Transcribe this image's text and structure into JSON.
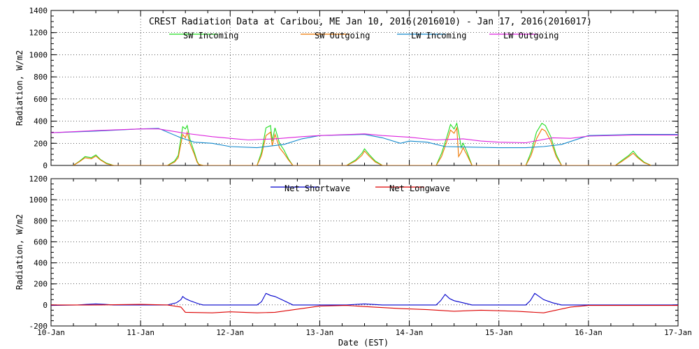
{
  "chart_data": [
    {
      "type": "line",
      "title": "CREST Radiation Data at Caribou, ME   Jan 10, 2016(2016010) - Jan 17, 2016(2016017)",
      "xlabel": "",
      "ylabel": "Radiation, W/m2",
      "xlim": [
        "10-Jan",
        "17-Jan"
      ],
      "ylim": [
        0,
        1400
      ],
      "yticks": [
        0,
        200,
        400,
        600,
        800,
        1000,
        1200,
        1400
      ],
      "grid": true,
      "legend_position": "top",
      "colors": {
        "sw_in": "#22dd22",
        "sw_out": "#ee7700",
        "lw_in": "#1188cc",
        "lw_out": "#dd22dd"
      },
      "series": [
        {
          "name": "SW Incoming",
          "color": "#22dd22",
          "x": [
            0.25,
            0.32,
            0.38,
            0.45,
            0.5,
            0.55,
            0.58,
            0.62,
            0.7,
            1.3,
            1.38,
            1.42,
            1.47,
            1.5,
            1.52,
            1.55,
            1.6,
            1.63,
            1.65,
            1.7,
            2.3,
            2.35,
            2.4,
            2.45,
            2.47,
            2.5,
            2.53,
            2.55,
            2.6,
            2.65,
            2.7,
            3.3,
            3.4,
            3.47,
            3.5,
            3.55,
            3.62,
            3.7,
            4.3,
            4.36,
            4.42,
            4.46,
            4.5,
            4.53,
            4.55,
            4.58,
            4.6,
            4.64,
            4.7,
            5.3,
            5.36,
            5.42,
            5.48,
            5.52,
            5.58,
            5.64,
            5.7,
            6.3,
            6.38,
            6.45,
            6.5,
            6.55,
            6.62,
            6.7
          ],
          "y": [
            0,
            40,
            80,
            70,
            95,
            55,
            40,
            20,
            0,
            0,
            40,
            90,
            350,
            330,
            360,
            240,
            120,
            40,
            10,
            0,
            0,
            120,
            340,
            360,
            220,
            340,
            260,
            200,
            140,
            60,
            0,
            0,
            50,
            110,
            150,
            100,
            40,
            0,
            0,
            110,
            260,
            370,
            330,
            380,
            300,
            160,
            200,
            130,
            0,
            0,
            120,
            300,
            380,
            360,
            260,
            100,
            0,
            0,
            50,
            90,
            130,
            80,
            30,
            0
          ]
        },
        {
          "name": "SW Outgoing",
          "color": "#ee7700",
          "x": [
            0.25,
            0.32,
            0.38,
            0.45,
            0.5,
            0.55,
            0.58,
            0.62,
            0.7,
            1.3,
            1.38,
            1.42,
            1.47,
            1.5,
            1.52,
            1.55,
            1.6,
            1.63,
            1.65,
            1.7,
            2.3,
            2.35,
            2.4,
            2.45,
            2.47,
            2.5,
            2.53,
            2.55,
            2.6,
            2.65,
            2.7,
            3.3,
            3.4,
            3.47,
            3.5,
            3.55,
            3.62,
            3.7,
            4.3,
            4.36,
            4.42,
            4.46,
            4.5,
            4.53,
            4.55,
            4.58,
            4.6,
            4.64,
            4.7,
            5.3,
            5.36,
            5.42,
            5.48,
            5.52,
            5.58,
            5.64,
            5.7,
            6.3,
            6.38,
            6.45,
            6.5,
            6.55,
            6.62,
            6.7
          ],
          "y": [
            0,
            35,
            70,
            60,
            85,
            50,
            35,
            15,
            0,
            0,
            30,
            70,
            280,
            250,
            300,
            200,
            100,
            30,
            8,
            0,
            0,
            90,
            270,
            300,
            180,
            280,
            210,
            160,
            110,
            50,
            0,
            0,
            40,
            90,
            130,
            85,
            30,
            0,
            0,
            80,
            220,
            320,
            290,
            340,
            80,
            120,
            160,
            100,
            0,
            0,
            90,
            240,
            330,
            310,
            220,
            80,
            0,
            0,
            40,
            80,
            110,
            70,
            25,
            0
          ]
        },
        {
          "name": "LW Incoming",
          "color": "#1188cc",
          "x": [
            0,
            0.5,
            1.0,
            1.2,
            1.45,
            1.6,
            1.8,
            2.0,
            2.3,
            2.6,
            2.8,
            3.0,
            3.5,
            3.7,
            3.9,
            4.0,
            4.2,
            4.4,
            4.7,
            5.0,
            5.3,
            5.5,
            5.7,
            6.0,
            6.5,
            7.0
          ],
          "y": [
            295,
            310,
            330,
            335,
            250,
            210,
            200,
            170,
            160,
            190,
            240,
            270,
            280,
            250,
            200,
            220,
            210,
            170,
            165,
            160,
            160,
            170,
            190,
            270,
            280,
            280
          ]
        },
        {
          "name": "LW Outgoing",
          "color": "#dd22dd",
          "x": [
            0,
            0.5,
            1.0,
            1.2,
            1.5,
            1.8,
            2.0,
            2.2,
            2.5,
            2.8,
            3.0,
            3.5,
            3.7,
            4.0,
            4.3,
            4.6,
            4.8,
            5.0,
            5.3,
            5.6,
            5.8,
            6.0,
            6.5,
            7.0
          ],
          "y": [
            295,
            315,
            330,
            330,
            290,
            260,
            245,
            230,
            240,
            260,
            270,
            285,
            270,
            255,
            230,
            240,
            220,
            210,
            205,
            250,
            245,
            265,
            275,
            275
          ]
        }
      ]
    },
    {
      "type": "line",
      "title": "",
      "xlabel": "Date (EST)",
      "ylabel": "Radiation, W/m2",
      "categories": [
        "10-Jan",
        "11-Jan",
        "12-Jan",
        "13-Jan",
        "14-Jan",
        "15-Jan",
        "16-Jan",
        "17-Jan"
      ],
      "xlim": [
        "10-Jan",
        "17-Jan"
      ],
      "ylim": [
        -200,
        1200
      ],
      "yticks": [
        -200,
        0,
        200,
        400,
        600,
        800,
        1000,
        1200
      ],
      "grid": true,
      "legend_position": "top",
      "colors": {
        "net_sw": "#0000cc",
        "net_lw": "#dd0000"
      },
      "series": [
        {
          "name": "Net Shortwave",
          "color": "#0000cc",
          "x": [
            0,
            0.3,
            0.4,
            0.5,
            0.6,
            0.7,
            1.3,
            1.4,
            1.45,
            1.47,
            1.5,
            1.55,
            1.65,
            1.7,
            2.3,
            2.35,
            2.4,
            2.45,
            2.5,
            2.55,
            2.6,
            2.7,
            3.3,
            3.5,
            3.7,
            4.3,
            4.35,
            4.4,
            4.45,
            4.5,
            4.6,
            4.7,
            5.3,
            5.35,
            5.4,
            5.45,
            5.5,
            5.6,
            5.7,
            7.0
          ],
          "y": [
            -5,
            0,
            5,
            10,
            5,
            0,
            0,
            20,
            50,
            80,
            60,
            40,
            10,
            0,
            0,
            30,
            110,
            90,
            80,
            60,
            40,
            0,
            0,
            10,
            0,
            0,
            40,
            100,
            60,
            40,
            20,
            0,
            0,
            40,
            110,
            80,
            50,
            20,
            0,
            0
          ]
        },
        {
          "name": "Net Longwave",
          "color": "#dd0000",
          "x": [
            0,
            0.5,
            1.0,
            1.3,
            1.45,
            1.5,
            1.8,
            2.0,
            2.3,
            2.5,
            2.8,
            3.0,
            3.3,
            3.6,
            3.9,
            4.2,
            4.5,
            4.8,
            5.2,
            5.5,
            5.8,
            6.0,
            6.5,
            7.0
          ],
          "y": [
            0,
            0,
            5,
            0,
            -20,
            -70,
            -75,
            -65,
            -75,
            -70,
            -35,
            -10,
            -5,
            -20,
            -35,
            -45,
            -60,
            -50,
            -60,
            -75,
            -20,
            -5,
            -5,
            -5
          ]
        }
      ]
    }
  ]
}
